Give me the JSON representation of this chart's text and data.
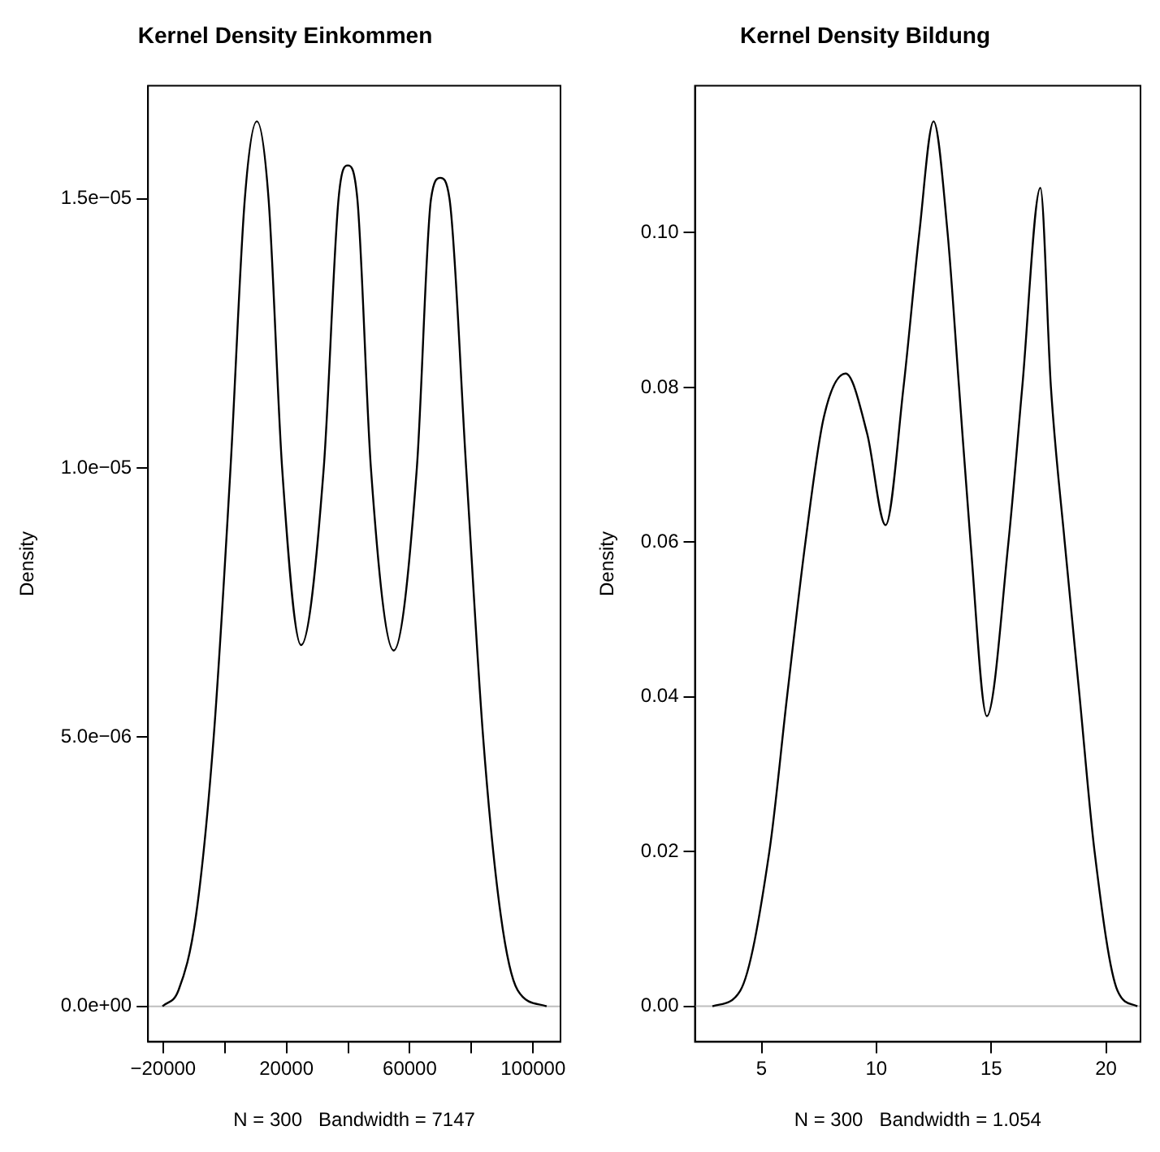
{
  "chart_data": [
    {
      "type": "line",
      "title": "Kernel Density Einkommen",
      "xlabel": "N = 300   Bandwidth = 7147",
      "ylabel": "Density",
      "x": [
        -20200,
        -15000,
        -9300,
        -3600,
        1860,
        6500,
        10400,
        14200,
        18600,
        24750,
        32100,
        36900,
        39900,
        43000,
        47400,
        54800,
        62300,
        66900,
        69900,
        72900,
        78300,
        83800,
        89500,
        95000,
        104400
      ],
      "series": [
        {
          "color": "#000000",
          "values": [
            0,
            3e-07,
            1.7e-06,
            5e-06,
            1e-05,
            1.5e-05,
            1.644e-05,
            1.5e-05,
            1e-05,
            6.71e-06,
            1e-05,
            1.5e-05,
            1.562e-05,
            1.5e-05,
            1e-05,
            6.61e-06,
            1e-05,
            1.5e-05,
            1.539e-05,
            1.5e-05,
            1e-05,
            5e-06,
            1.7e-06,
            3e-07,
            0
          ]
        }
      ],
      "xlim": [
        -24900,
        108900
      ],
      "xticks": [
        {
          "value": -20000,
          "label": "−20000"
        },
        {
          "value": 0,
          "label": null
        },
        20000,
        {
          "value": 40000,
          "label": null
        },
        60000,
        {
          "value": 80000,
          "label": null
        },
        100000
      ],
      "ylim": [
        -6.6e-07,
        1.71e-05
      ],
      "yticks": [
        {
          "value": 0,
          "label": "0.0e+00"
        },
        {
          "value": 5e-06,
          "label": "5.0e−06"
        },
        {
          "value": 1e-05,
          "label": "1.0e−05"
        },
        {
          "value": 1.5e-05,
          "label": "1.5e−05"
        }
      ],
      "ref_lines": [
        {
          "axis": "y",
          "value": 0,
          "color": "#bebebe"
        }
      ],
      "grid": false,
      "legend": false,
      "marker": "none",
      "line_style": "solid"
    },
    {
      "type": "line",
      "title": "Kernel Density Bildung",
      "xlabel": "N = 300   Bandwidth = 1.054",
      "ylabel": "Density",
      "x": [
        2.86,
        4.07,
        5.34,
        6.11,
        6.91,
        7.7,
        8.66,
        9.6,
        10.4,
        11.18,
        11.87,
        12.49,
        13.1,
        13.6,
        14.1,
        14.81,
        15.75,
        16.35,
        17.14,
        17.6,
        18.2,
        18.85,
        19.5,
        20.5,
        21.36
      ],
      "series": [
        {
          "color": "#000000",
          "values": [
            0,
            0.002,
            0.02,
            0.04,
            0.06,
            0.076,
            0.0818,
            0.074,
            0.0622,
            0.08,
            0.1,
            0.1144,
            0.1,
            0.08,
            0.06,
            0.0375,
            0.06,
            0.08,
            0.1058,
            0.08,
            0.06,
            0.04,
            0.02,
            0.002,
            0
          ]
        }
      ],
      "xlim": [
        2.1,
        21.5
      ],
      "xticks": [
        5,
        10,
        15,
        20
      ],
      "ylim": [
        -0.0046,
        0.119
      ],
      "yticks": [
        {
          "value": 0,
          "label": "0.00"
        },
        {
          "value": 0.02,
          "label": "0.02"
        },
        {
          "value": 0.04,
          "label": "0.04"
        },
        {
          "value": 0.06,
          "label": "0.06"
        },
        {
          "value": 0.08,
          "label": "0.08"
        },
        {
          "value": 0.1,
          "label": "0.10"
        }
      ],
      "ref_lines": [
        {
          "axis": "y",
          "value": 0,
          "color": "#bebebe"
        }
      ],
      "grid": false,
      "legend": false,
      "marker": "none",
      "line_style": "solid"
    }
  ]
}
